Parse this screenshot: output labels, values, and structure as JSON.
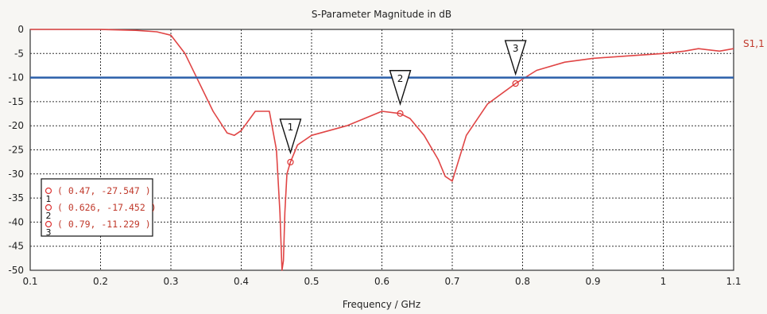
{
  "chart_data": {
    "type": "line",
    "title": "S-Parameter Magnitude in dB",
    "xlabel": "Frequency / GHz",
    "ylabel": "",
    "xlim": [
      0.1,
      1.1
    ],
    "ylim": [
      -50,
      0
    ],
    "x_ticks": [
      "0.1",
      "0.2",
      "0.3",
      "0.4",
      "0.5",
      "0.6",
      "0.7",
      "0.8",
      "0.9",
      "1",
      "1.1"
    ],
    "y_ticks": [
      "0",
      "-5",
      "-10",
      "-15",
      "-20",
      "-25",
      "-30",
      "-35",
      "-40",
      "-45",
      "-50"
    ],
    "grid": true,
    "series": [
      {
        "name": "S1,1",
        "color": "#e04545",
        "x": [
          0.1,
          0.2,
          0.25,
          0.28,
          0.3,
          0.32,
          0.34,
          0.36,
          0.38,
          0.39,
          0.4,
          0.42,
          0.44,
          0.45,
          0.455,
          0.458,
          0.46,
          0.462,
          0.465,
          0.47,
          0.48,
          0.5,
          0.55,
          0.6,
          0.626,
          0.64,
          0.66,
          0.68,
          0.69,
          0.7,
          0.72,
          0.75,
          0.79,
          0.82,
          0.86,
          0.9,
          0.95,
          1.0,
          1.03,
          1.05,
          1.08,
          1.1
        ],
        "y": [
          0,
          0,
          -0.2,
          -0.5,
          -1.2,
          -5,
          -11,
          -17,
          -21.5,
          -22,
          -21,
          -17,
          -17,
          -25,
          -38,
          -50,
          -48,
          -38,
          -30,
          -27.547,
          -24,
          -22,
          -20,
          -17,
          -17.452,
          -18.5,
          -22,
          -27,
          -30.5,
          -31.5,
          -22,
          -15.5,
          -11.229,
          -8.5,
          -6.8,
          -6,
          -5.5,
          -5,
          -4.5,
          -4,
          -4.5,
          -4
        ]
      },
      {
        "name": "",
        "color": "#2b5faa",
        "x": [
          0.1,
          1.1
        ],
        "y": [
          -10,
          -10
        ]
      }
    ],
    "markers": [
      {
        "id": "1",
        "x": 0.47,
        "y": -27.547,
        "label": "( 0.47, -27.547 )"
      },
      {
        "id": "2",
        "x": 0.626,
        "y": -17.452,
        "label": "( 0.626, -17.452 )"
      },
      {
        "id": "3",
        "x": 0.79,
        "y": -11.229,
        "label": "( 0.79, -11.229 )"
      }
    ],
    "series_label": "S1,1"
  }
}
